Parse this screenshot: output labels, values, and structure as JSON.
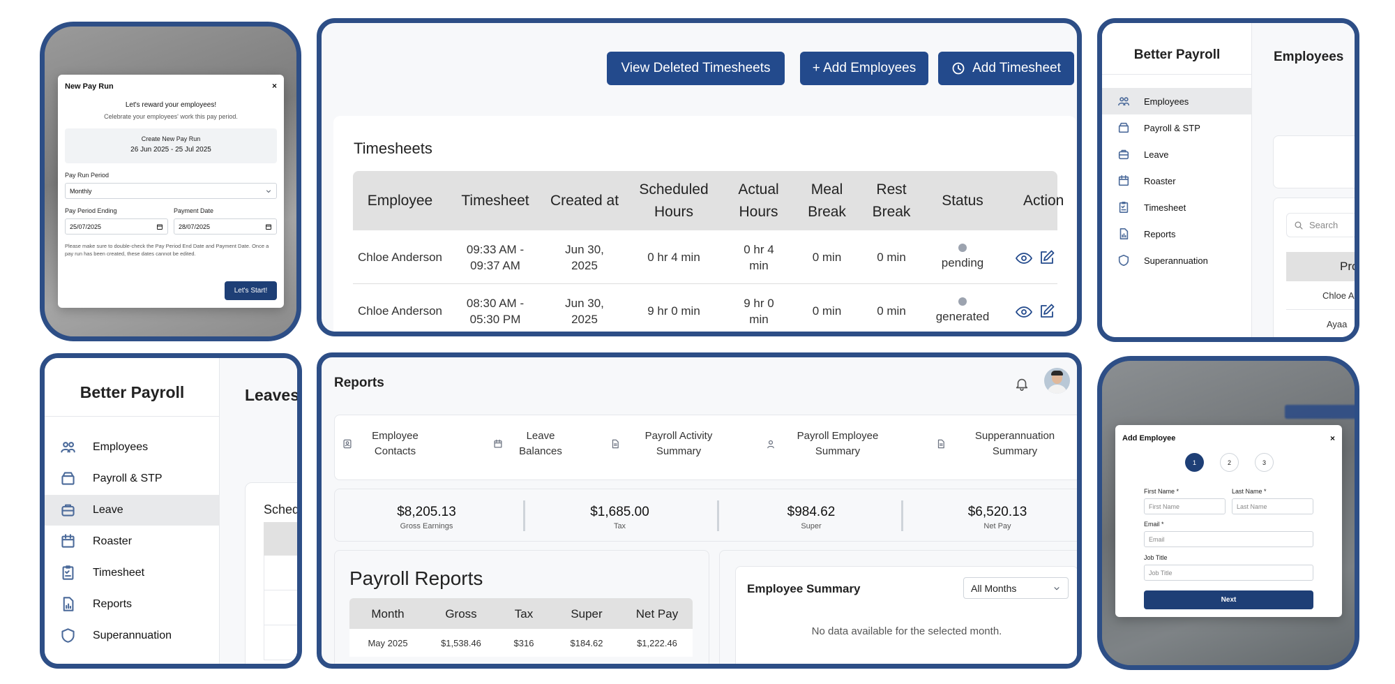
{
  "pay_run_modal": {
    "title": "New Pay Run",
    "close": "×",
    "heading": "Let's reward your employees!",
    "subheading": "Celebrate your employees' work this pay period.",
    "create_label": "Create New Pay Run",
    "date_range": "26 Jun 2025 - 25 Jul 2025",
    "period_label": "Pay Run Period",
    "period_value": "Monthly",
    "ending_label": "Pay Period Ending",
    "ending_value": "25/07/2025",
    "payment_label": "Payment Date",
    "payment_value": "28/07/2025",
    "note": "Please make sure to double-check the Pay Period End Date and Payment Date. Once a pay run has been created, these dates cannot be edited.",
    "start_button": "Let's Start!"
  },
  "timesheets": {
    "buttons": {
      "deleted": "View Deleted Timesheets",
      "add_employees": "+ Add Employees",
      "add_timesheet": "Add Timesheet"
    },
    "title": "Timesheets",
    "columns": [
      "Employee",
      "Timesheet",
      "Created at",
      "Scheduled Hours",
      "Actual Hours",
      "Meal Break",
      "Rest Break",
      "Status",
      "Action"
    ],
    "rows": [
      {
        "employee": "Chloe Anderson",
        "timesheet": "09:33 AM - 09:37 AM",
        "created": "Jun 30, 2025",
        "scheduled": "0 hr 4 min",
        "actual": "0 hr 4 min",
        "meal": "0 min",
        "rest": "0 min",
        "status": "pending"
      },
      {
        "employee": "Chloe Anderson",
        "timesheet": "08:30 AM - 05:30 PM",
        "created": "Jun 30, 2025",
        "scheduled": "9 hr 0 min",
        "actual": "9 hr 0 min",
        "meal": "0 min",
        "rest": "0 min",
        "status": "generated"
      }
    ]
  },
  "employees_view": {
    "brand": "Better Payroll",
    "page_title": "Employees",
    "nav": [
      "Employees",
      "Payroll & STP",
      "Leave",
      "Roaster",
      "Timesheet",
      "Reports",
      "Superannuation"
    ],
    "active": "Employees",
    "search_placeholder": "Search",
    "table_header_partial": "Pro",
    "rows_partial": [
      "Chloe A",
      "Ayaa"
    ]
  },
  "leaves_view": {
    "brand": "Better Payroll",
    "page_title": "Leaves",
    "nav": [
      "Employees",
      "Payroll & STP",
      "Leave",
      "Roaster",
      "Timesheet",
      "Reports",
      "Superannuation"
    ],
    "active": "Leave",
    "section_partial": "Sched"
  },
  "reports": {
    "title": "Reports",
    "tabs": [
      "Employee Contacts",
      "Leave Balances",
      "Payroll Activity Summary",
      "Payroll Employee Summary",
      "Supperannuation Summary"
    ],
    "stats": [
      {
        "value": "$8,205.13",
        "label": "Gross Earnings"
      },
      {
        "value": "$1,685.00",
        "label": "Tax"
      },
      {
        "value": "$984.62",
        "label": "Super"
      },
      {
        "value": "$6,520.13",
        "label": "Net Pay"
      }
    ],
    "payroll_title": "Payroll Reports",
    "payroll_columns": [
      "Month",
      "Gross",
      "Tax",
      "Super",
      "Net Pay"
    ],
    "payroll_rows": [
      {
        "month": "May 2025",
        "gross": "$1,538.46",
        "tax": "$316",
        "super": "$184.62",
        "net": "$1,222.46"
      }
    ],
    "summary_title": "Employee Summary",
    "months_select": "All Months",
    "empty_text": "No data available for the selected month."
  },
  "add_employee_modal": {
    "title": "Add Employee",
    "close": "×",
    "steps": [
      "1",
      "2",
      "3"
    ],
    "first_name_label": "First Name *",
    "first_name_placeholder": "First Name",
    "last_name_label": "Last Name *",
    "last_name_placeholder": "Last Name",
    "email_label": "Email *",
    "email_placeholder": "Email",
    "job_label": "Job Title",
    "job_placeholder": "Job Title",
    "next_button": "Next"
  },
  "colors": {
    "accent": "#234a8c",
    "frame": "#2d4e86"
  }
}
